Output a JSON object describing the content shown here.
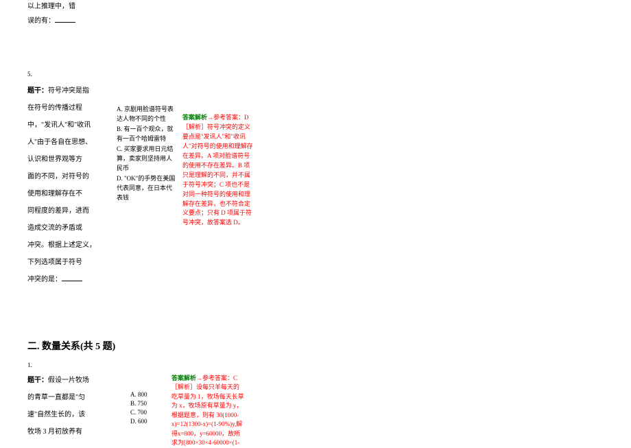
{
  "colors": {
    "green": "#008000",
    "red": "#ff0000",
    "text": "#000000",
    "bg": "#ffffff"
  },
  "typography": {
    "body_fontsize": 10,
    "small_fontsize": 9,
    "header_fontsize": 14,
    "line_height": 1.9
  },
  "q4_tail": {
    "line1": "以上推理中，错",
    "line2_prefix": "误的有："
  },
  "q5": {
    "num": "5.",
    "stem_label": "题干：",
    "stem_lines": [
      "符号冲突是指",
      "在符号的传播过程",
      "中，\"发讯人\"和\"收讯",
      "人\"由于各自在思想、",
      "认识和世界观等方",
      "面的不同，对符号的",
      "使用和理解存在不",
      "同程度的差异，进而",
      "造成交流的矛盾或",
      "冲突。根据上述定义，",
      "下列选项属于符号",
      "冲突的是："
    ],
    "options": [
      {
        "key": "A.",
        "text": "京剧用脸谱符号表达人物不同的个性"
      },
      {
        "key": "B.",
        "text": "有一百个观众，就有一百个哈姆雷特"
      },
      {
        "key": "C.",
        "text": "买家要求用日元结算，卖家则坚持用人民币"
      },
      {
        "key": "D.",
        "text": "\"OK\"的手势在美国代表同意，在日本代表钱"
      }
    ],
    "answer": {
      "label": "答案解析",
      "ref_prefix": "参考答案：",
      "ref_value": "D",
      "explain_label": "［解析］",
      "explain": "符号冲突的定义要点是\"发讯人\"和\"收讯人\"对符号的使用和理解存在差异。A 项对脸谱符号的使用不存在差异。B 项只是理解的不同，并不属于符号冲突；C 项也不是对同一种符号的使用和理解存在差异，也不符合定义要点；只有 D 项属于符号冲突，故答案选 D。"
    }
  },
  "section2": {
    "header": "二. 数量关系(共 5 题)"
  },
  "q1": {
    "num": "1.",
    "stem_label": "题干：",
    "stem_lines": [
      "假设一片牧场",
      "的青草一直都是\"匀",
      "速\"自然生长的，该",
      "牧场 3 月初放养有"
    ],
    "options": [
      {
        "key": "A.",
        "text": "800"
      },
      {
        "key": "B.",
        "text": "750"
      },
      {
        "key": "C.",
        "text": "700"
      },
      {
        "key": "D.",
        "text": "600"
      }
    ],
    "answer": {
      "label": "答案解析",
      "ref_prefix": "参考答案：",
      "ref_value": "C",
      "explain_label": "［解析］",
      "explain": "设每只羊每天的吃草量为 1，牧场每天长草为 x，牧场原有草量为 y，根据题意，则有 30(1000-x)=12(1300-x)=(1-90%)y,解得x=800，y=60000，故所求为[800×30×4-60000×(1-"
    }
  }
}
